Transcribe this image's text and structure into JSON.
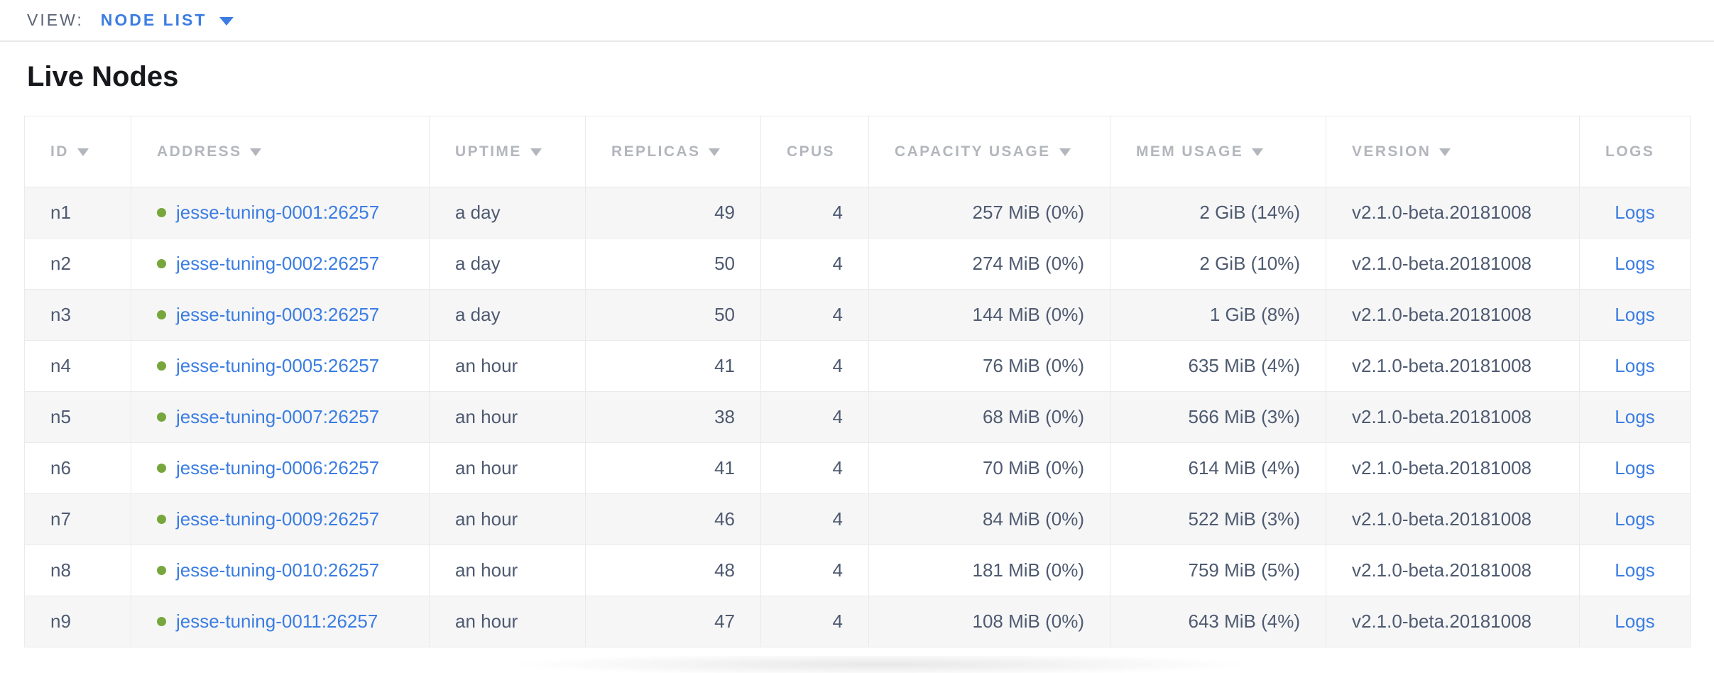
{
  "view_bar": {
    "label": "VIEW:",
    "selected": "NODE LIST"
  },
  "page": {
    "title": "Live Nodes"
  },
  "icons": {
    "dropdown": "triangle-down-icon",
    "sort": "sort-desc-triangle-icon",
    "node_status": "green-dot-live-icon"
  },
  "colors": {
    "link_blue": "#3b7de2",
    "status_green": "#77a63c",
    "header_gray": "#b3b6bc",
    "body_text": "#4e5a70",
    "row_alt_bg": "#f6f6f7",
    "border": "#e9eaeb"
  },
  "table": {
    "logs_label": "Logs",
    "columns": [
      {
        "key": "id",
        "label": "ID",
        "sortable": true,
        "align": "left"
      },
      {
        "key": "address",
        "label": "ADDRESS",
        "sortable": true,
        "align": "left"
      },
      {
        "key": "uptime",
        "label": "UPTIME",
        "sortable": true,
        "align": "left"
      },
      {
        "key": "replicas",
        "label": "REPLICAS",
        "sortable": true,
        "align": "right"
      },
      {
        "key": "cpus",
        "label": "CPUS",
        "sortable": false,
        "align": "right"
      },
      {
        "key": "capacity",
        "label": "CAPACITY USAGE",
        "sortable": true,
        "align": "right"
      },
      {
        "key": "mem",
        "label": "MEM USAGE",
        "sortable": true,
        "align": "right"
      },
      {
        "key": "version",
        "label": "VERSION",
        "sortable": true,
        "align": "left"
      },
      {
        "key": "logs",
        "label": "LOGS",
        "sortable": false,
        "align": "center"
      }
    ],
    "rows": [
      {
        "id": "n1",
        "address": "jesse-tuning-0001:26257",
        "uptime": "a day",
        "replicas": "49",
        "cpus": "4",
        "capacity": "257 MiB (0%)",
        "mem": "2 GiB (14%)",
        "version": "v2.1.0-beta.20181008"
      },
      {
        "id": "n2",
        "address": "jesse-tuning-0002:26257",
        "uptime": "a day",
        "replicas": "50",
        "cpus": "4",
        "capacity": "274 MiB (0%)",
        "mem": "2 GiB (10%)",
        "version": "v2.1.0-beta.20181008"
      },
      {
        "id": "n3",
        "address": "jesse-tuning-0003:26257",
        "uptime": "a day",
        "replicas": "50",
        "cpus": "4",
        "capacity": "144 MiB (0%)",
        "mem": "1 GiB (8%)",
        "version": "v2.1.0-beta.20181008"
      },
      {
        "id": "n4",
        "address": "jesse-tuning-0005:26257",
        "uptime": "an hour",
        "replicas": "41",
        "cpus": "4",
        "capacity": "76 MiB (0%)",
        "mem": "635 MiB (4%)",
        "version": "v2.1.0-beta.20181008"
      },
      {
        "id": "n5",
        "address": "jesse-tuning-0007:26257",
        "uptime": "an hour",
        "replicas": "38",
        "cpus": "4",
        "capacity": "68 MiB (0%)",
        "mem": "566 MiB (3%)",
        "version": "v2.1.0-beta.20181008"
      },
      {
        "id": "n6",
        "address": "jesse-tuning-0006:26257",
        "uptime": "an hour",
        "replicas": "41",
        "cpus": "4",
        "capacity": "70 MiB (0%)",
        "mem": "614 MiB (4%)",
        "version": "v2.1.0-beta.20181008"
      },
      {
        "id": "n7",
        "address": "jesse-tuning-0009:26257",
        "uptime": "an hour",
        "replicas": "46",
        "cpus": "4",
        "capacity": "84 MiB (0%)",
        "mem": "522 MiB (3%)",
        "version": "v2.1.0-beta.20181008"
      },
      {
        "id": "n8",
        "address": "jesse-tuning-0010:26257",
        "uptime": "an hour",
        "replicas": "48",
        "cpus": "4",
        "capacity": "181 MiB (0%)",
        "mem": "759 MiB (5%)",
        "version": "v2.1.0-beta.20181008"
      },
      {
        "id": "n9",
        "address": "jesse-tuning-0011:26257",
        "uptime": "an hour",
        "replicas": "47",
        "cpus": "4",
        "capacity": "108 MiB (0%)",
        "mem": "643 MiB (4%)",
        "version": "v2.1.0-beta.20181008"
      }
    ]
  }
}
